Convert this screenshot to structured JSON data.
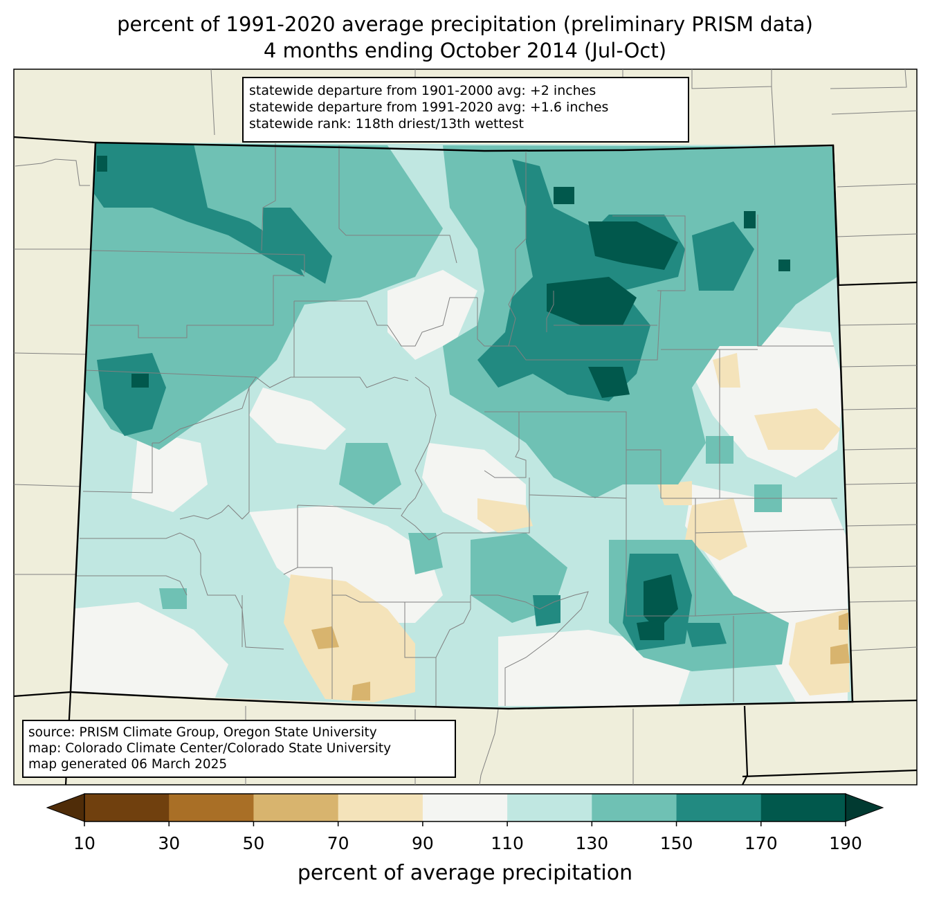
{
  "title_line1": "percent of 1991-2020 average precipitation (preliminary PRISM data)",
  "title_line2": "4 months ending October 2014 (Jul-Oct)",
  "stats": [
    "statewide departure from 1901-2000 avg: +2 inches",
    "statewide departure from 1991-2020 avg: +1.6 inches",
    "statewide rank: 118th driest/13th wettest"
  ],
  "source": [
    "source: PRISM Climate Group, Oregon State University",
    "map: Colorado Climate Center/Colorado State University",
    "map generated 06 March 2025"
  ],
  "colorbar": {
    "label": "percent of average precipitation",
    "ticks": [
      "10",
      "30",
      "50",
      "70",
      "90",
      "110",
      "130",
      "150",
      "170",
      "190"
    ],
    "bins": [
      {
        "range": "10-30",
        "color": "#70400e"
      },
      {
        "range": "30-50",
        "color": "#a96f26"
      },
      {
        "range": "50-70",
        "color": "#d8b46e"
      },
      {
        "range": "70-90",
        "color": "#f4e3ba"
      },
      {
        "range": "90-110",
        "color": "#f4f5f2"
      },
      {
        "range": "110-130",
        "color": "#c0e7e1"
      },
      {
        "range": "130-150",
        "color": "#6fc1b4"
      },
      {
        "range": "150-170",
        "color": "#228a81"
      },
      {
        "range": "170-190",
        "color": "#01584c"
      }
    ],
    "under_color": "#4f2c08",
    "over_color": "#013a31"
  },
  "colors": {
    "background_land": "#efeedb",
    "county_lines": "#808080"
  }
}
